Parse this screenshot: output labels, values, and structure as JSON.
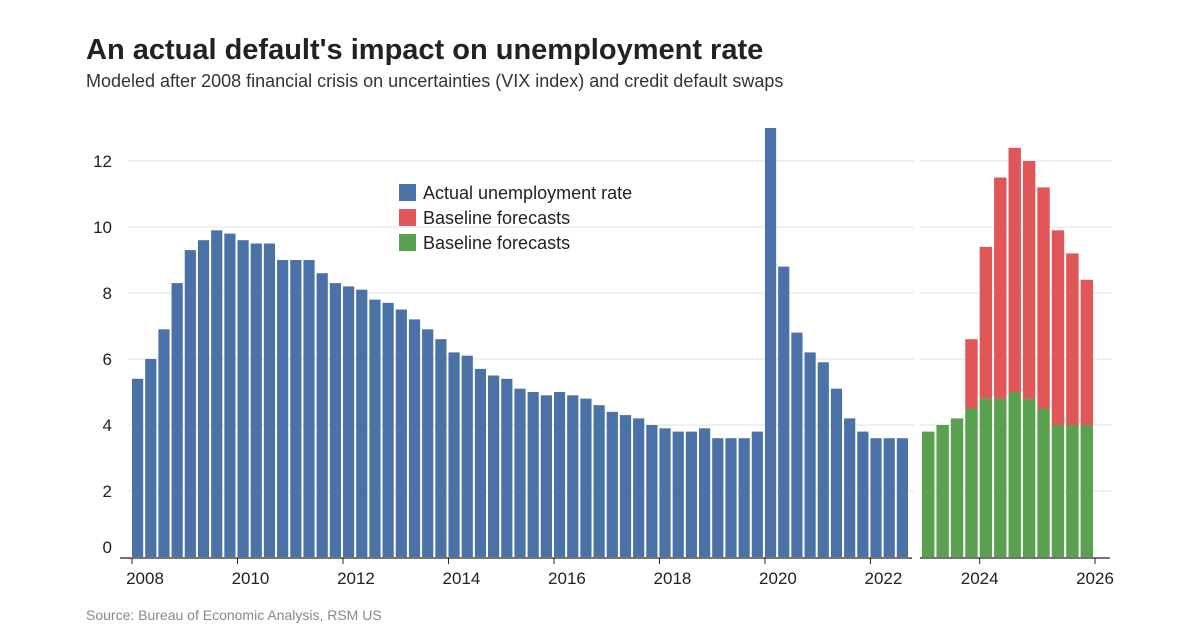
{
  "header": {
    "title": "An actual default's impact on unemployment rate",
    "subtitle": "Modeled after 2008 financial crisis on uncertainties (VIX index) and credit default swaps"
  },
  "footer": {
    "source": "Source: Bureau of Economic Analysis, RSM US"
  },
  "colors": {
    "actual": "#4a72a6",
    "forecast_red": "#e15759",
    "forecast_green": "#59a14f",
    "grid": "#e3e3e3"
  },
  "chart_data": {
    "type": "bar",
    "title": "An actual default's impact on unemployment rate",
    "xlabel": "",
    "ylabel": "",
    "ylim": [
      0,
      13
    ],
    "y_ticks": [
      "0",
      "2",
      "4",
      "6",
      "8",
      "10",
      "12"
    ],
    "x_ticks_left": [
      "2008",
      "2010",
      "2012",
      "2014",
      "2016",
      "2018",
      "2020",
      "2022"
    ],
    "x_ticks_right": [
      "2024",
      "2026"
    ],
    "legend": [
      {
        "label": "Actual unemployment rate",
        "color": "#4a72a6"
      },
      {
        "label": "Baseline forecasts",
        "color": "#e15759"
      },
      {
        "label": "Baseline forecasts",
        "color": "#59a14f"
      }
    ],
    "series": [
      {
        "name": "Actual unemployment rate",
        "values": [
          5.4,
          6.0,
          6.9,
          8.3,
          9.3,
          9.6,
          9.9,
          9.8,
          9.6,
          9.5,
          9.5,
          9.0,
          9.0,
          9.0,
          8.6,
          8.3,
          8.2,
          8.1,
          7.8,
          7.7,
          7.5,
          7.2,
          6.9,
          6.6,
          6.2,
          6.1,
          5.7,
          5.5,
          5.4,
          5.1,
          5.0,
          4.9,
          5.0,
          4.9,
          4.8,
          4.6,
          4.4,
          4.3,
          4.2,
          4.0,
          3.9,
          3.8,
          3.8,
          3.9,
          3.6,
          3.6,
          3.6,
          3.8,
          13.0,
          8.8,
          6.8,
          6.2,
          5.9,
          5.1,
          4.2,
          3.8,
          3.6,
          3.6,
          3.6
        ]
      },
      {
        "name": "Baseline forecasts (green)",
        "values": [
          3.8,
          4.0,
          4.2,
          4.5,
          4.8,
          4.8,
          5.0,
          4.8,
          4.5,
          4.0,
          4.0,
          4.0
        ]
      },
      {
        "name": "Baseline forecasts (red total)",
        "values": [
          3.8,
          4.0,
          4.2,
          6.6,
          9.4,
          11.5,
          12.4,
          12.0,
          11.2,
          9.9,
          9.2,
          8.4
        ]
      }
    ]
  }
}
